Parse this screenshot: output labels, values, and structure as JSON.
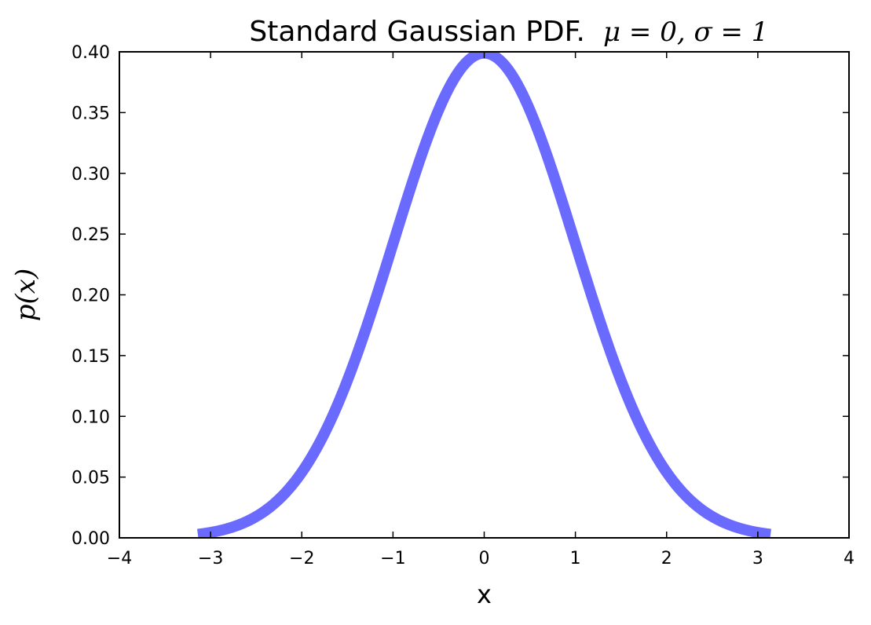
{
  "chart_data": {
    "type": "line",
    "title": "Standard Gaussian PDF.",
    "title_math": "μ = 0, σ = 1",
    "xlabel": "x",
    "ylabel": "p(x)",
    "xlim": [
      -4,
      4
    ],
    "ylim": [
      0.0,
      0.4
    ],
    "x_ticks": [
      -4,
      -3,
      -2,
      -1,
      0,
      1,
      2,
      3,
      4
    ],
    "x_tick_labels": [
      "−4",
      "−3",
      "−2",
      "−1",
      "0",
      "1",
      "2",
      "3",
      "4"
    ],
    "y_ticks": [
      0.0,
      0.05,
      0.1,
      0.15,
      0.2,
      0.25,
      0.3,
      0.35,
      0.4
    ],
    "y_tick_labels": [
      "0.00",
      "0.05",
      "0.10",
      "0.15",
      "0.20",
      "0.25",
      "0.30",
      "0.35",
      "0.40"
    ],
    "grid": false,
    "series": [
      {
        "color": "#6a6aff",
        "mu": 0,
        "sigma": 1,
        "x": [
          -3.14,
          -3.0,
          -2.75,
          -2.5,
          -2.25,
          -2.0,
          -1.75,
          -1.5,
          -1.25,
          -1.0,
          -0.75,
          -0.5,
          -0.25,
          0.0,
          0.25,
          0.5,
          0.75,
          1.0,
          1.25,
          1.5,
          1.75,
          2.0,
          2.25,
          2.5,
          2.75,
          3.0,
          3.14
        ],
        "y": [
          0.0029,
          0.0044,
          0.0091,
          0.0175,
          0.0317,
          0.054,
          0.0863,
          0.1295,
          0.1826,
          0.242,
          0.3011,
          0.3521,
          0.3867,
          0.3989,
          0.3867,
          0.3521,
          0.3011,
          0.242,
          0.1826,
          0.1295,
          0.0863,
          0.054,
          0.0317,
          0.0175,
          0.0091,
          0.0044,
          0.0029
        ]
      }
    ]
  }
}
